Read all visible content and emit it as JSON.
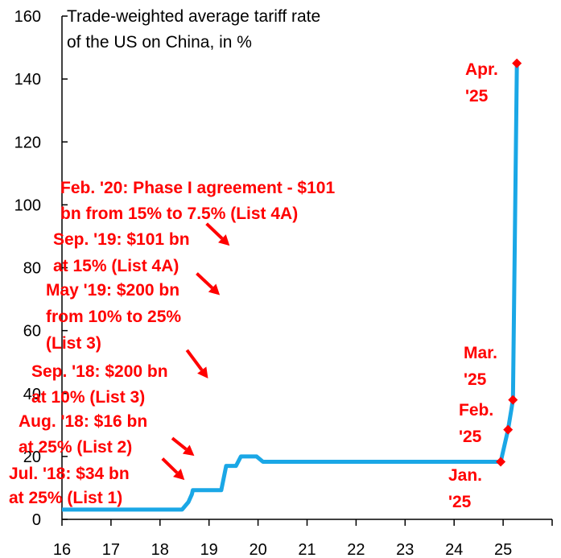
{
  "chart_data": {
    "type": "line",
    "title_lines": [
      "Trade-weighted average tariff rate",
      "of the US on China, in %"
    ],
    "xlabel": "",
    "ylabel": "",
    "xlim": [
      16,
      26
    ],
    "ylim": [
      0,
      160
    ],
    "xticks": [
      16,
      17,
      18,
      19,
      20,
      21,
      22,
      23,
      24,
      25
    ],
    "xtick_labels": [
      "16",
      "17",
      "18",
      "19",
      "20",
      "21",
      "22",
      "23",
      "24",
      "25"
    ],
    "yticks": [
      0,
      20,
      40,
      60,
      80,
      100,
      120,
      140,
      160
    ],
    "ytick_labels": [
      "0",
      "20",
      "40",
      "60",
      "80",
      "100",
      "120",
      "140",
      "160"
    ],
    "grid": false,
    "line_color": "#1aa7e6",
    "marker_color": "#ff0000",
    "annotation_color": "#ff0000",
    "series": [
      {
        "values_x": [
          16.0,
          18.45,
          18.58,
          18.65,
          18.67,
          19.25,
          19.35,
          19.55,
          19.65,
          19.97,
          20.1,
          24.95,
          25.1,
          25.2,
          25.28
        ],
        "values_y": [
          3.1,
          3.1,
          5.5,
          8.0,
          9.3,
          9.3,
          17.0,
          17.0,
          20.0,
          20.0,
          18.3,
          18.3,
          28.5,
          38.0,
          145.0
        ]
      }
    ],
    "markers": [
      {
        "x": 24.95,
        "y": 18.3
      },
      {
        "x": 25.1,
        "y": 28.5
      },
      {
        "x": 25.2,
        "y": 38.0
      },
      {
        "x": 25.28,
        "y": 145.0
      }
    ],
    "annotations": [
      {
        "lines": [
          "Jul. '18: $34 bn",
          "at 25% (List 1)"
        ],
        "arrow_from": [
          18.05,
          19.3
        ],
        "arrow_to": [
          18.5,
          12.5
        ]
      },
      {
        "lines": [
          "Aug. '18: $16 bn",
          "at 25% (List 2)"
        ],
        "arrow_from": [
          18.25,
          25.8
        ],
        "arrow_to": [
          18.7,
          20.2
        ]
      },
      {
        "lines": [
          "Sep. '18: $200 bn",
          "at 10% (List 3)"
        ],
        "arrow_from": [
          18.55,
          53.8
        ],
        "arrow_to": [
          18.98,
          44.8
        ]
      },
      {
        "lines": [
          "May '19: $200 bn",
          "from 10% to 25%",
          "(List 3)"
        ],
        "arrow_from": [
          18.75,
          78.2
        ],
        "arrow_to": [
          19.22,
          71.3
        ]
      },
      {
        "lines": [
          "Sep. '19: $101 bn",
          "at 15% (List 4A)"
        ],
        "arrow_from": [
          18.95,
          94.0
        ],
        "arrow_to": [
          19.42,
          87.0
        ]
      },
      {
        "lines": [
          "Feb. '20: Phase I agreement - $101",
          "bn from 15% to 7.5% (List 4A)"
        ],
        "arrow_from": null,
        "arrow_to": null
      },
      {
        "lines": [
          "Jan.",
          "'25"
        ],
        "arrow_from": null,
        "arrow_to": null
      },
      {
        "lines": [
          "Feb.",
          "'25"
        ],
        "arrow_from": null,
        "arrow_to": null
      },
      {
        "lines": [
          "Mar.",
          "'25"
        ],
        "arrow_from": null,
        "arrow_to": null
      },
      {
        "lines": [
          "Apr.",
          "'25"
        ],
        "arrow_from": null,
        "arrow_to": null
      }
    ]
  }
}
